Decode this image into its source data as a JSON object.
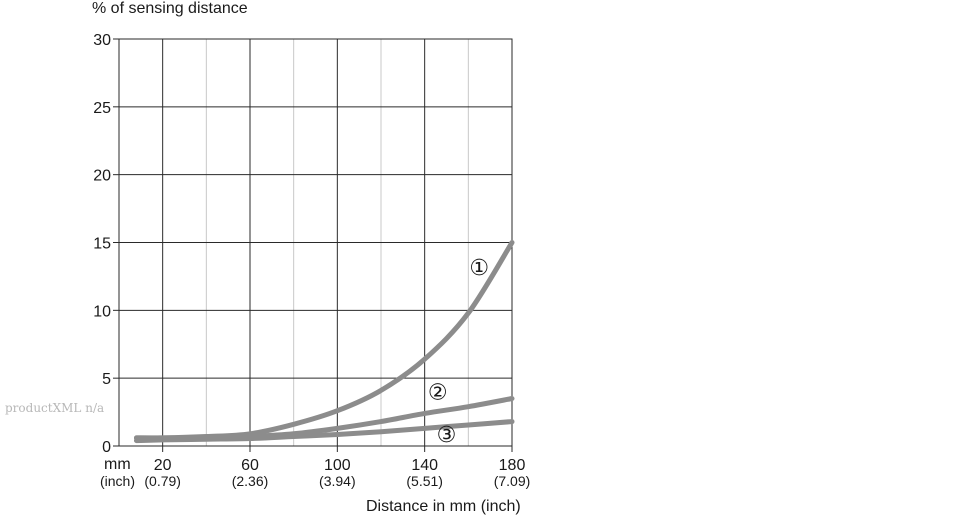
{
  "watermark": "productXML n/a",
  "chart_data": {
    "type": "line",
    "title": "",
    "ylabel": "% of sensing distance",
    "xlabel": "Distance in mm (inch)",
    "x_unit_primary": "mm",
    "x_unit_secondary": "(inch)",
    "xlim": [
      0,
      180
    ],
    "ylim": [
      0,
      30
    ],
    "grid": true,
    "x_major_ticks": [
      20,
      60,
      100,
      140,
      180
    ],
    "x_major_tick_labels": [
      "20",
      "60",
      "100",
      "140",
      "180"
    ],
    "x_secondary_tick_labels": [
      "(0.79)",
      "(2.36)",
      "(3.94)",
      "(5.51)",
      "(7.09)"
    ],
    "x_gridlines": [
      20,
      40,
      60,
      80,
      100,
      120,
      140,
      160,
      180
    ],
    "y_ticks": [
      0,
      5,
      10,
      15,
      20,
      25,
      30
    ],
    "y_tick_labels": [
      "0",
      "5",
      "10",
      "15",
      "20",
      "25",
      "30"
    ],
    "series_color": "#8c8c8c",
    "series": [
      {
        "name": "①",
        "x": [
          8,
          20,
          40,
          60,
          80,
          100,
          120,
          140,
          160,
          180
        ],
        "y": [
          0.6,
          0.6,
          0.7,
          0.9,
          1.6,
          2.6,
          4.1,
          6.4,
          9.8,
          15.0
        ]
      },
      {
        "name": "②",
        "x": [
          8,
          20,
          40,
          60,
          80,
          100,
          120,
          140,
          160,
          180
        ],
        "y": [
          0.6,
          0.6,
          0.6,
          0.7,
          0.9,
          1.3,
          1.8,
          2.4,
          2.9,
          3.5
        ]
      },
      {
        "name": "③",
        "x": [
          8,
          20,
          40,
          60,
          80,
          100,
          120,
          140,
          160,
          180
        ],
        "y": [
          0.4,
          0.45,
          0.5,
          0.55,
          0.7,
          0.85,
          1.05,
          1.3,
          1.55,
          1.8
        ]
      }
    ],
    "series_labels": [
      {
        "text": "①",
        "x": 165,
        "y": 13.2
      },
      {
        "text": "②",
        "x": 146,
        "y": 4.0
      },
      {
        "text": "③",
        "x": 150,
        "y": 0.9
      }
    ]
  }
}
